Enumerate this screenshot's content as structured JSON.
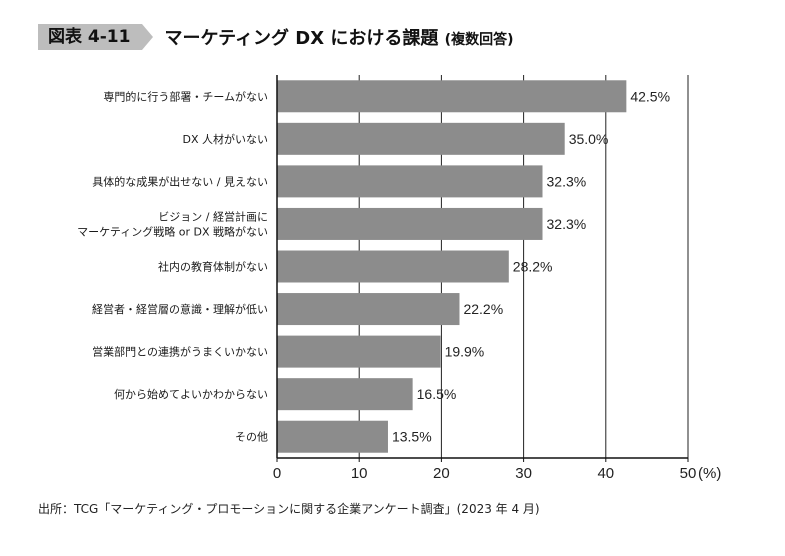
{
  "figure": {
    "number": "図表 4-11",
    "title": "マーケティング DX における課題",
    "subtitle": "(複数回答)"
  },
  "chart_data": {
    "type": "bar",
    "orientation": "horizontal",
    "categories": [
      [
        "専門的に行う部署・チームがない"
      ],
      [
        "DX 人材がいない"
      ],
      [
        "具体的な成果が出せない / 見えない"
      ],
      [
        "ビジョン / 経営計画に",
        "マーケティング戦略 or DX 戦略がない"
      ],
      [
        "社内の教育体制がない"
      ],
      [
        "経営者・経営層の意識・理解が低い"
      ],
      [
        "営業部門との連携がうまくいかない"
      ],
      [
        "何から始めてよいかわからない"
      ],
      [
        "その他"
      ]
    ],
    "values": [
      42.5,
      35.0,
      32.3,
      32.3,
      28.2,
      22.2,
      19.9,
      16.5,
      13.5
    ],
    "value_labels": [
      "42.5%",
      "35.0%",
      "32.3%",
      "32.3%",
      "28.2%",
      "22.2%",
      "19.9%",
      "16.5%",
      "13.5%"
    ],
    "xticks": [
      0,
      10,
      20,
      30,
      40,
      50
    ],
    "xunit": "(%)",
    "xlim": [
      0,
      50
    ],
    "grid": true,
    "bar_color": "#8c8c8c"
  },
  "source": "出所：TCG「マーケティング・プロモーションに関する企業アンケート調査」(2023 年 4 月)"
}
